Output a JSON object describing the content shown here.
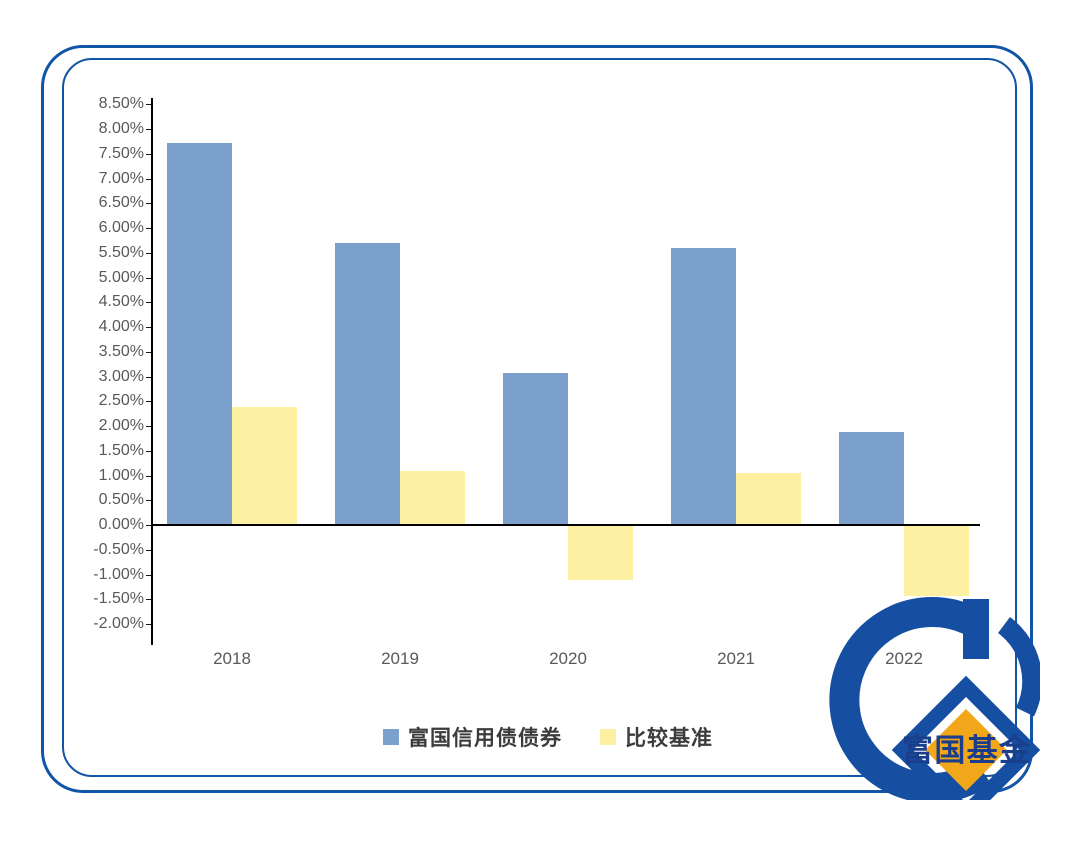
{
  "chart_data": {
    "type": "bar",
    "title": "",
    "xlabel": "",
    "ylabel": "",
    "unit": "%",
    "categories": [
      "2018",
      "2019",
      "2020",
      "2021",
      "2022"
    ],
    "series": [
      {
        "name": "富国信用债债券",
        "color": "#7AA0CB",
        "values": [
          7.71,
          5.7,
          3.07,
          5.59,
          1.87
        ]
      },
      {
        "name": "比较基准",
        "color": "#FEF0A2",
        "values": [
          2.38,
          1.1,
          -1.12,
          1.06,
          -1.44
        ]
      }
    ],
    "ylim": [
      -2.0,
      8.5
    ],
    "ytick_step": 0.5,
    "ytick_labels": [
      "8.50%",
      "8.00%",
      "7.50%",
      "7.00%",
      "6.50%",
      "6.00%",
      "5.50%",
      "5.00%",
      "4.50%",
      "4.00%",
      "3.50%",
      "3.00%",
      "2.50%",
      "2.00%",
      "1.50%",
      "1.00%",
      "0.50%",
      "0.00%",
      "-0.50%",
      "-1.00%",
      "-1.50%",
      "-2.00%"
    ],
    "grid": false,
    "legend_position": "bottom",
    "axis_color": "#000000",
    "tick_label_color": "#595959"
  },
  "legend": {
    "items": [
      {
        "label": "富国信用债债券",
        "swatch_color": "#7AA0CB"
      },
      {
        "label": "比较基准",
        "swatch_color": "#FEF0A2"
      }
    ]
  },
  "logo": {
    "text": "富国基金",
    "blue": "#164EA2",
    "yellow": "#F2A71B",
    "text_color": "#1B3E8C"
  },
  "frame": {
    "border_color": "#1254A6"
  }
}
